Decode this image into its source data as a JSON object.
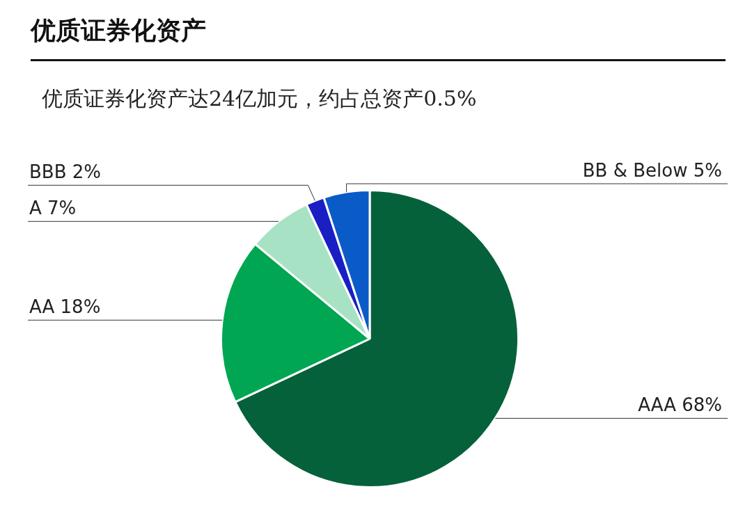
{
  "chart_data": {
    "type": "pie",
    "title": "优质证券化资产",
    "subtitle": "优质证券化资产达24亿加元，约占总资产0.5%",
    "categories": [
      "AAA",
      "AA",
      "A",
      "BBB",
      "BB & Below"
    ],
    "values": [
      68,
      18,
      7,
      2,
      5
    ],
    "value_labels": [
      "68%",
      "18%",
      "7%",
      "2%",
      "5%"
    ],
    "colors": [
      "#05613a",
      "#00a651",
      "#a8e2c4",
      "#1a1fc4",
      "#0a5bc8"
    ]
  }
}
